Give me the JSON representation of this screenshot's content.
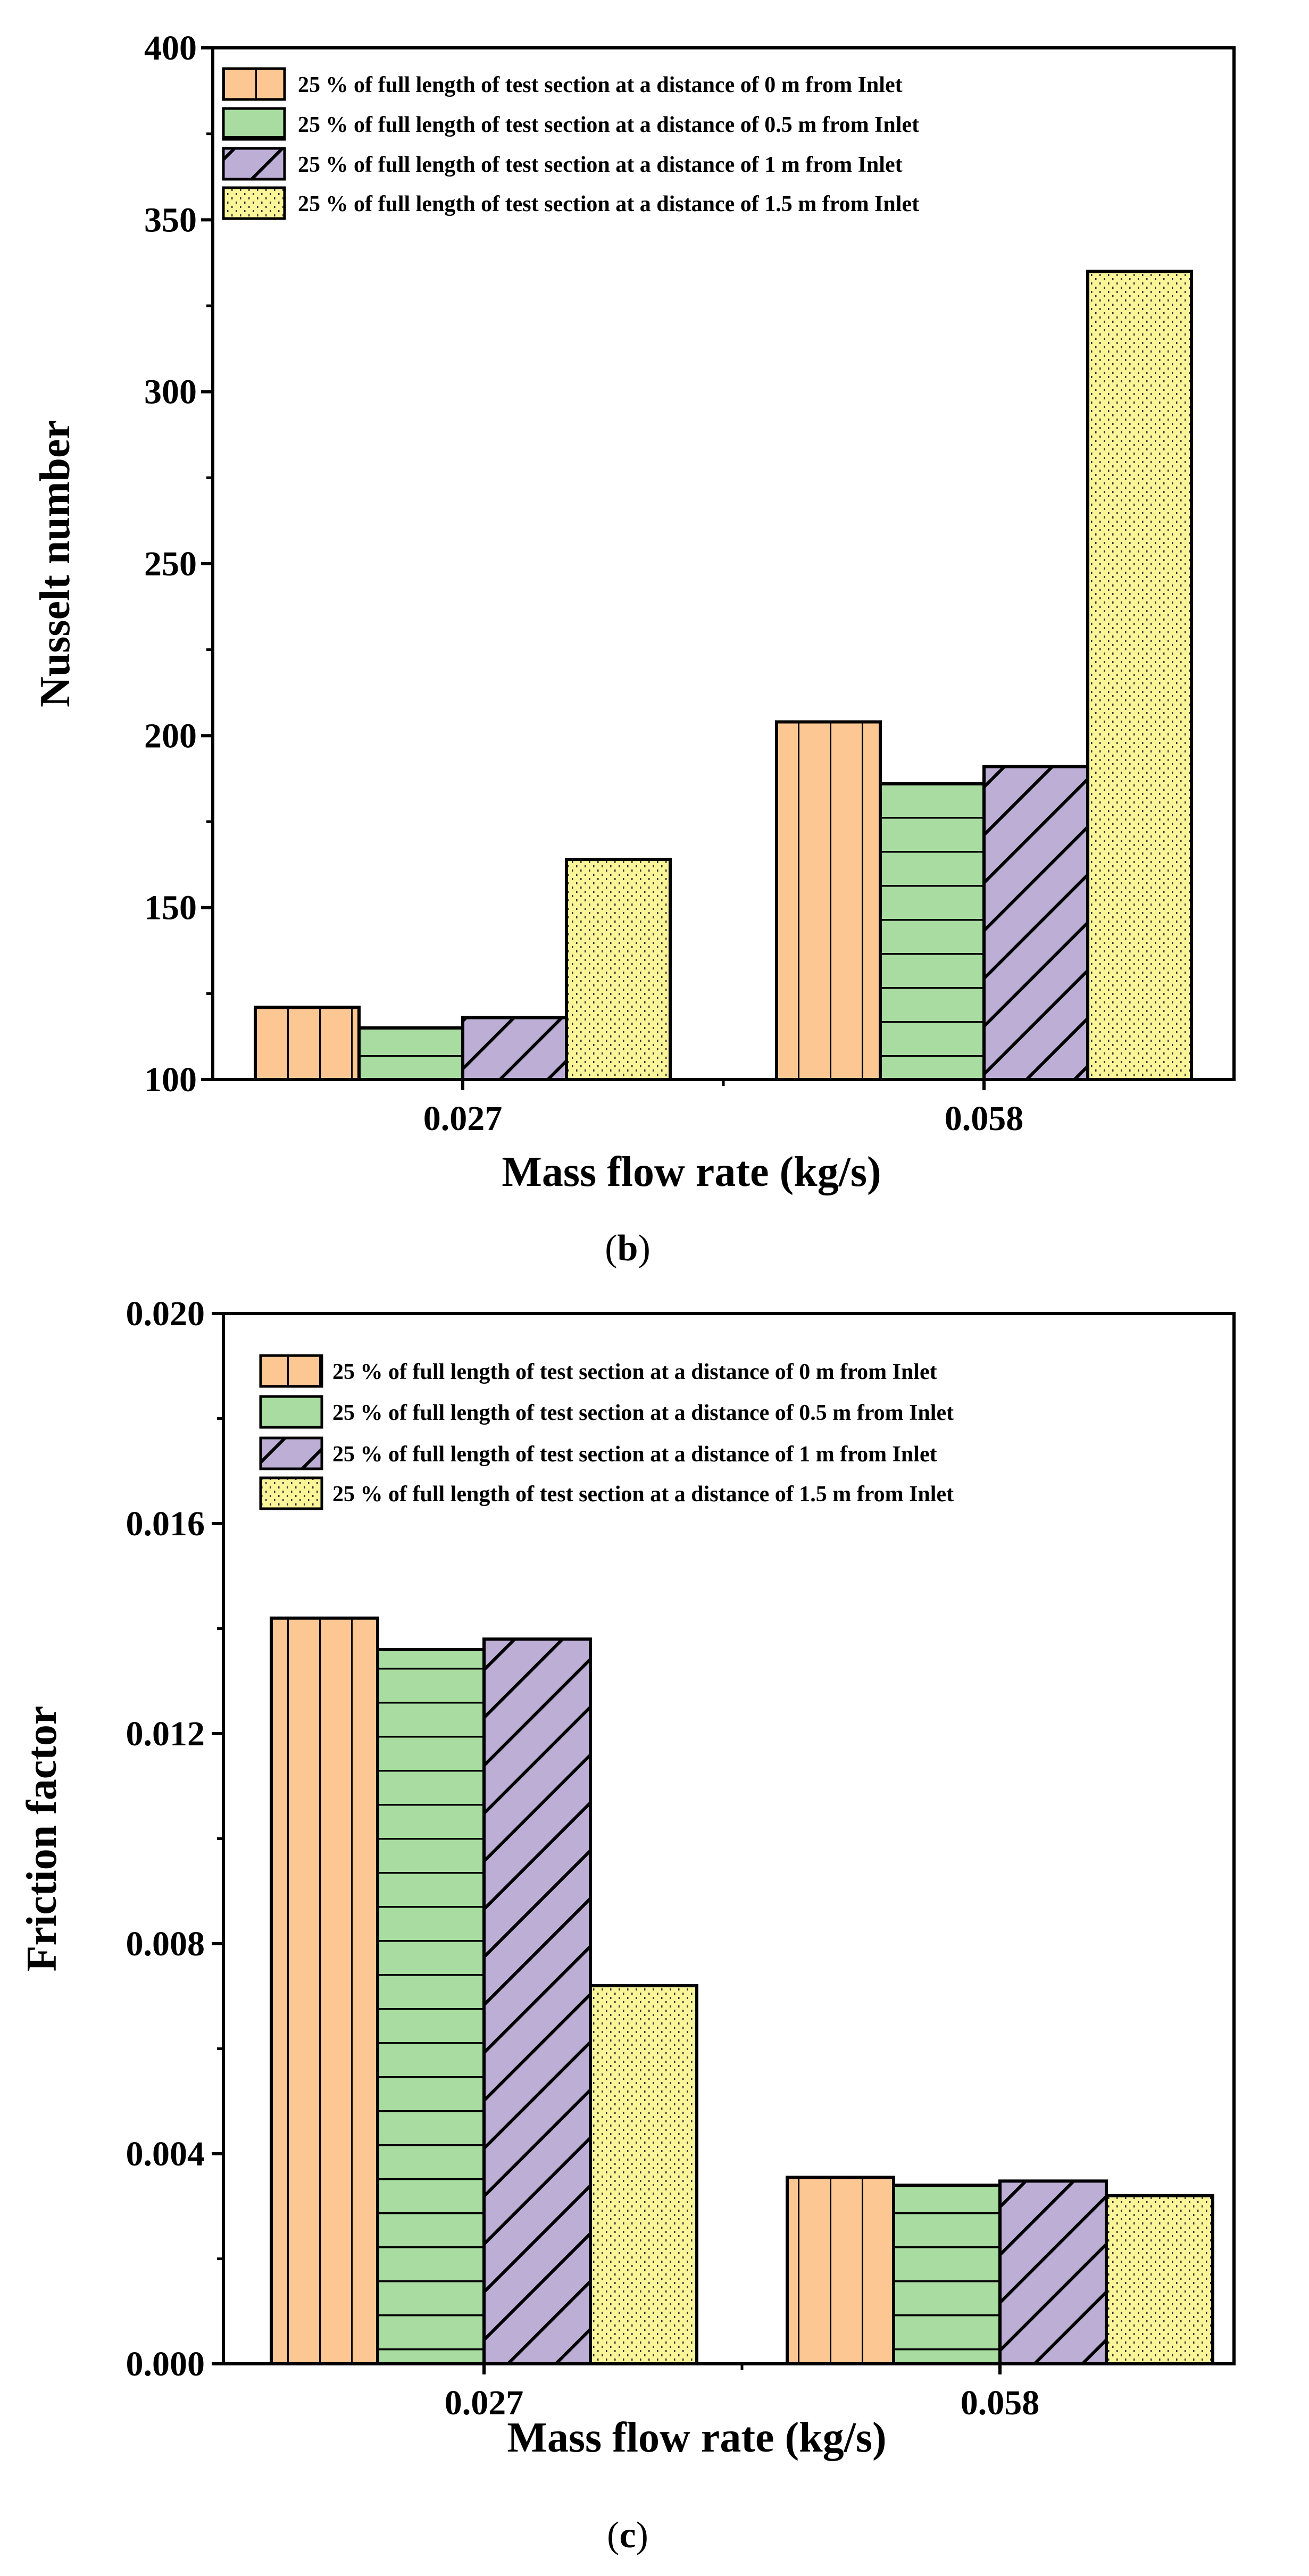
{
  "colors": {
    "orange": "#FDC794",
    "green": "#A8DCA0",
    "purple": "#BDAED6",
    "yellow": "#FBF59A"
  },
  "chart_data": [
    {
      "type": "bar",
      "panel_label_open": "(",
      "panel_label": "b",
      "panel_label_close": ")",
      "xlabel": "Mass flow rate (kg/s)",
      "ylabel": "Nusselt number",
      "categories": [
        "0.027",
        "0.058"
      ],
      "ylim": [
        100,
        400
      ],
      "yticks": [
        "100",
        "150",
        "200",
        "250",
        "300",
        "350",
        "400"
      ],
      "legend_position": "top-left",
      "series": [
        {
          "name": "25 % of full length of test section at a distance of 0 m from Inlet",
          "values": [
            121,
            204
          ],
          "color": "#FDC794",
          "pattern": "vertical"
        },
        {
          "name": "25 % of full length of test section at a distance of 0.5 m from Inlet",
          "values": [
            115,
            186
          ],
          "color": "#A8DCA0",
          "pattern": "horizontal"
        },
        {
          "name": "25 % of full length of test section at a distance of 1 m from Inlet",
          "values": [
            118,
            191
          ],
          "color": "#BDAED6",
          "pattern": "diagonal"
        },
        {
          "name": "25 % of full length of test section at a distance of 1.5 m from Inlet",
          "values": [
            164,
            335
          ],
          "color": "#FBF59A",
          "pattern": "dots"
        }
      ]
    },
    {
      "type": "bar",
      "panel_label_open": "(",
      "panel_label": "c",
      "panel_label_close": ")",
      "xlabel": "Mass flow rate (kg/s)",
      "ylabel": "Friction factor",
      "categories": [
        "0.027",
        "0.058"
      ],
      "ylim": [
        0,
        0.02
      ],
      "yticks": [
        "0.000",
        "0.004",
        "0.008",
        "0.012",
        "0.016",
        "0.020"
      ],
      "legend_position": "top-left",
      "series": [
        {
          "name": "25 % of full length of test section at a distance of 0 m from Inlet",
          "values": [
            0.0142,
            0.00355
          ],
          "color": "#FDC794",
          "pattern": "vertical"
        },
        {
          "name": "25 % of full length of test section at a distance of 0.5 m from Inlet",
          "values": [
            0.0136,
            0.0034
          ],
          "color": "#A8DCA0",
          "pattern": "horizontal"
        },
        {
          "name": "25 % of full length of test section at a distance of 1 m from Inlet",
          "values": [
            0.0138,
            0.00348
          ],
          "color": "#BDAED6",
          "pattern": "diagonal"
        },
        {
          "name": "25 % of full length of test section at a distance of 1.5 m from Inlet",
          "values": [
            0.0072,
            0.0032
          ],
          "color": "#FBF59A",
          "pattern": "dots"
        }
      ]
    }
  ]
}
